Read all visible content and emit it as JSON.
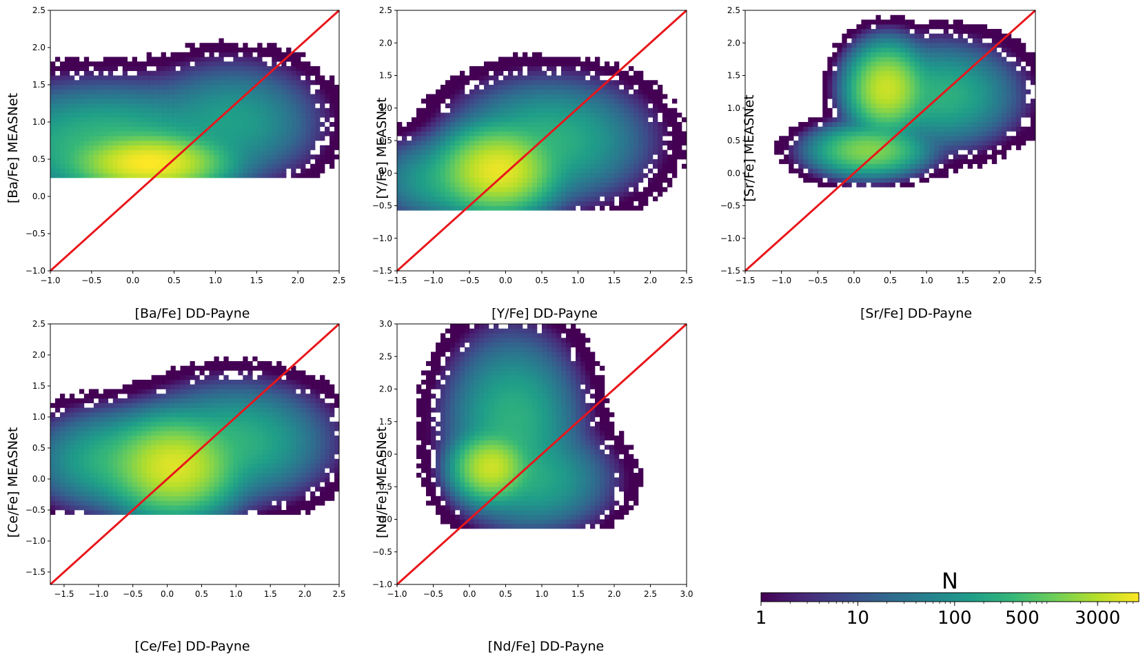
{
  "chart_data": [
    {
      "type": "heatmap",
      "id": "ba",
      "xlabel": "[Ba/Fe] DD-Payne",
      "ylabel": "[Ba/Fe] MEASNet",
      "xlim": [
        -1.0,
        2.5
      ],
      "ylim": [
        -1.0,
        2.5
      ],
      "xticks": [
        "−1.0",
        "−0.5",
        "0.0",
        "0.5",
        "1.0",
        "1.5",
        "2.0",
        "2.5"
      ],
      "yticks": [
        "−1.0",
        "−0.5",
        "0.0",
        "0.5",
        "1.0",
        "1.5",
        "2.0",
        "2.5"
      ],
      "one_to_one_line": true,
      "density_clusters": [
        {
          "x": 0.2,
          "y": 0.45,
          "sx": 0.35,
          "sy": 0.15,
          "peak_N": 8000
        },
        {
          "x": -0.3,
          "y": 0.7,
          "sx": 0.6,
          "sy": 0.3,
          "peak_N": 400
        },
        {
          "x": 1.2,
          "y": 1.0,
          "sx": 0.4,
          "sy": 0.3,
          "peak_N": 150
        }
      ],
      "y_floor": 0.25
    },
    {
      "type": "heatmap",
      "id": "y",
      "xlabel": "[Y/Fe] DD-Payne",
      "ylabel": "[Y/Fe] MEASNet",
      "xlim": [
        -1.5,
        2.5
      ],
      "ylim": [
        -1.5,
        2.5
      ],
      "xticks": [
        "−1.5",
        "−1.0",
        "−0.5",
        "0.0",
        "0.5",
        "1.0",
        "1.5",
        "2.0",
        "2.5"
      ],
      "yticks": [
        "−1.5",
        "−1.0",
        "−0.5",
        "0.0",
        "0.5",
        "1.0",
        "1.5",
        "2.0",
        "2.5"
      ],
      "one_to_one_line": true,
      "density_clusters": [
        {
          "x": -0.1,
          "y": 0.05,
          "sx": 0.3,
          "sy": 0.25,
          "peak_N": 6000
        },
        {
          "x": 0.6,
          "y": 0.5,
          "sx": 0.5,
          "sy": 0.35,
          "peak_N": 300
        },
        {
          "x": -0.6,
          "y": -0.1,
          "sx": 0.45,
          "sy": 0.25,
          "peak_N": 300
        }
      ],
      "y_floor": -0.6
    },
    {
      "type": "heatmap",
      "id": "sr",
      "xlabel": "[Sr/Fe] DD-Payne",
      "ylabel": "[Sr/Fe] MEASNet",
      "xlim": [
        -1.5,
        2.5
      ],
      "ylim": [
        -1.5,
        2.5
      ],
      "xticks": [
        "−1.5",
        "−1.0",
        "−0.5",
        "0.0",
        "0.5",
        "1.0",
        "1.5",
        "2.0",
        "2.5"
      ],
      "yticks": [
        "−1.5",
        "−1.0",
        "−0.5",
        "0.0",
        "0.5",
        "1.0",
        "1.5",
        "2.0",
        "2.5"
      ],
      "one_to_one_line": true,
      "density_clusters": [
        {
          "x": 0.45,
          "y": 1.3,
          "sx": 0.2,
          "sy": 0.25,
          "peak_N": 4000
        },
        {
          "x": 0.2,
          "y": 0.35,
          "sx": 0.3,
          "sy": 0.15,
          "peak_N": 1500
        },
        {
          "x": 1.2,
          "y": 1.2,
          "sx": 0.4,
          "sy": 0.3,
          "peak_N": 300
        }
      ],
      "y_floor": -0.2
    },
    {
      "type": "heatmap",
      "id": "ce",
      "xlabel": "[Ce/Fe] DD-Payne",
      "ylabel": "[Ce/Fe] MEASNet",
      "xlim": [
        -1.7,
        2.5
      ],
      "ylim": [
        -1.7,
        2.5
      ],
      "xticks": [
        "−1.5",
        "−1.0",
        "−0.5",
        "0.0",
        "0.5",
        "1.0",
        "1.5",
        "2.0",
        "2.5"
      ],
      "yticks": [
        "−1.5",
        "−1.0",
        "−0.5",
        "0.0",
        "0.5",
        "1.0",
        "1.5",
        "2.0",
        "2.5"
      ],
      "one_to_one_line": true,
      "density_clusters": [
        {
          "x": 0.1,
          "y": 0.2,
          "sx": 0.35,
          "sy": 0.3,
          "peak_N": 5000
        },
        {
          "x": -0.6,
          "y": 0.3,
          "sx": 0.5,
          "sy": 0.3,
          "peak_N": 400
        },
        {
          "x": 1.0,
          "y": 0.6,
          "sx": 0.5,
          "sy": 0.35,
          "peak_N": 300
        }
      ],
      "y_floor": -0.55
    },
    {
      "type": "heatmap",
      "id": "nd",
      "xlabel": "[Nd/Fe] DD-Payne",
      "ylabel": "[Nd/Fe] MEASNet",
      "xlim": [
        -1.0,
        3.0
      ],
      "ylim": [
        -1.0,
        3.0
      ],
      "xticks": [
        "−1.0",
        "−0.5",
        "0.0",
        "0.5",
        "1.0",
        "1.5",
        "2.0",
        "2.5",
        "3.0"
      ],
      "yticks": [
        "−1.0",
        "−0.5",
        "0.0",
        "0.5",
        "1.0",
        "1.5",
        "2.0",
        "2.5",
        "3.0"
      ],
      "one_to_one_line": true,
      "density_clusters": [
        {
          "x": 0.3,
          "y": 0.8,
          "sx": 0.2,
          "sy": 0.2,
          "peak_N": 4000
        },
        {
          "x": 0.6,
          "y": 1.5,
          "sx": 0.35,
          "sy": 0.5,
          "peak_N": 300
        },
        {
          "x": 0.9,
          "y": 0.6,
          "sx": 0.4,
          "sy": 0.3,
          "peak_N": 200
        }
      ],
      "y_floor": -0.15
    }
  ],
  "colorbar": {
    "title": "N",
    "scale": "log",
    "range": [
      1,
      8000
    ],
    "ticks": [
      {
        "value": 1,
        "label": "1"
      },
      {
        "value": 10,
        "label": "10"
      },
      {
        "value": 100,
        "label": "100"
      },
      {
        "value": 500,
        "label": "500"
      },
      {
        "value": 3000,
        "label": "3000"
      }
    ],
    "colormap": "viridis",
    "colormap_stops": [
      "#440154",
      "#482878",
      "#3e4989",
      "#31688e",
      "#26828e",
      "#1f9e89",
      "#35b779",
      "#6ece58",
      "#b5de2b",
      "#fde725"
    ]
  },
  "line_color": "#e8161b"
}
